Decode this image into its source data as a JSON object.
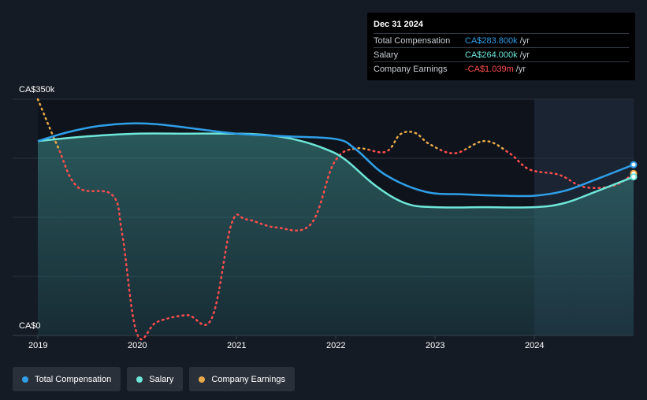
{
  "tooltip": {
    "date": "Dec 31 2024",
    "rows": [
      {
        "label": "Total Compensation",
        "value": "CA$283.800k",
        "unit": "/yr",
        "color": "#2f9fe8"
      },
      {
        "label": "Salary",
        "value": "CA$264.000k",
        "unit": "/yr",
        "color": "#6ee6d8"
      },
      {
        "label": "Company Earnings",
        "value": "-CA$1.039m",
        "unit": "/yr",
        "color": "#ff4d4d"
      }
    ]
  },
  "legend": [
    {
      "label": "Total Compensation",
      "color": "#2f9fe8"
    },
    {
      "label": "Salary",
      "color": "#6ee6d8"
    },
    {
      "label": "Company Earnings",
      "color": "#e8a94a"
    }
  ],
  "chart_data": {
    "type": "line",
    "y_axis_labels": [
      "CA$350k",
      "CA$0"
    ],
    "ylim": [
      0,
      350
    ],
    "xlim": [
      2019.0,
      2025.0
    ],
    "x_ticks": [
      {
        "year": 2019,
        "label": "2019"
      },
      {
        "year": 2020,
        "label": "2020"
      },
      {
        "year": 2021,
        "label": "2021"
      },
      {
        "year": 2022,
        "label": "2022"
      },
      {
        "year": 2023,
        "label": "2023"
      },
      {
        "year": 2024,
        "label": "2024"
      }
    ],
    "highlight_from": 2024.0,
    "series": [
      {
        "name": "Salary",
        "color": "#6ee6d8",
        "fill": true,
        "x": [
          2019.0,
          2019.5,
          2020.0,
          2020.5,
          2021.0,
          2021.3,
          2021.6,
          2021.9,
          2022.1,
          2022.4,
          2022.7,
          2023.0,
          2023.5,
          2024.0,
          2024.3,
          2024.6,
          2025.0
        ],
        "y": [
          288,
          295,
          299,
          299,
          299,
          297,
          290,
          276,
          260,
          222,
          196,
          190,
          190,
          190,
          196,
          212,
          235
        ]
      },
      {
        "name": "Total Compensation",
        "color": "#2f9fe8",
        "fill": false,
        "x": [
          2019.0,
          2019.3,
          2019.6,
          2019.9,
          2020.2,
          2020.6,
          2021.0,
          2021.5,
          2022.0,
          2022.2,
          2022.5,
          2022.9,
          2023.3,
          2023.7,
          2024.0,
          2024.3,
          2024.6,
          2025.0
        ],
        "y": [
          288,
          301,
          310,
          314,
          313,
          306,
          299,
          295,
          291,
          276,
          238,
          213,
          209,
          207,
          207,
          214,
          230,
          253
        ]
      },
      {
        "name": "Company Earnings",
        "color": "#e8a94a",
        "neg_color": "#ff4d4d",
        "style": "dotted",
        "threshold": 275,
        "x": [
          2019.0,
          2019.2,
          2019.4,
          2019.75,
          2019.85,
          2020.0,
          2020.2,
          2020.5,
          2020.75,
          2020.95,
          2021.1,
          2021.4,
          2021.75,
          2021.98,
          2022.2,
          2022.5,
          2022.65,
          2022.8,
          2022.95,
          2023.2,
          2023.5,
          2023.75,
          2023.95,
          2024.25,
          2024.5,
          2024.8,
          2025.0
        ],
        "y": [
          350,
          280,
          220,
          208,
          150,
          2,
          20,
          30,
          25,
          165,
          172,
          160,
          165,
          255,
          277,
          272,
          298,
          300,
          283,
          270,
          288,
          270,
          246,
          238,
          220,
          222,
          240
        ]
      }
    ]
  }
}
